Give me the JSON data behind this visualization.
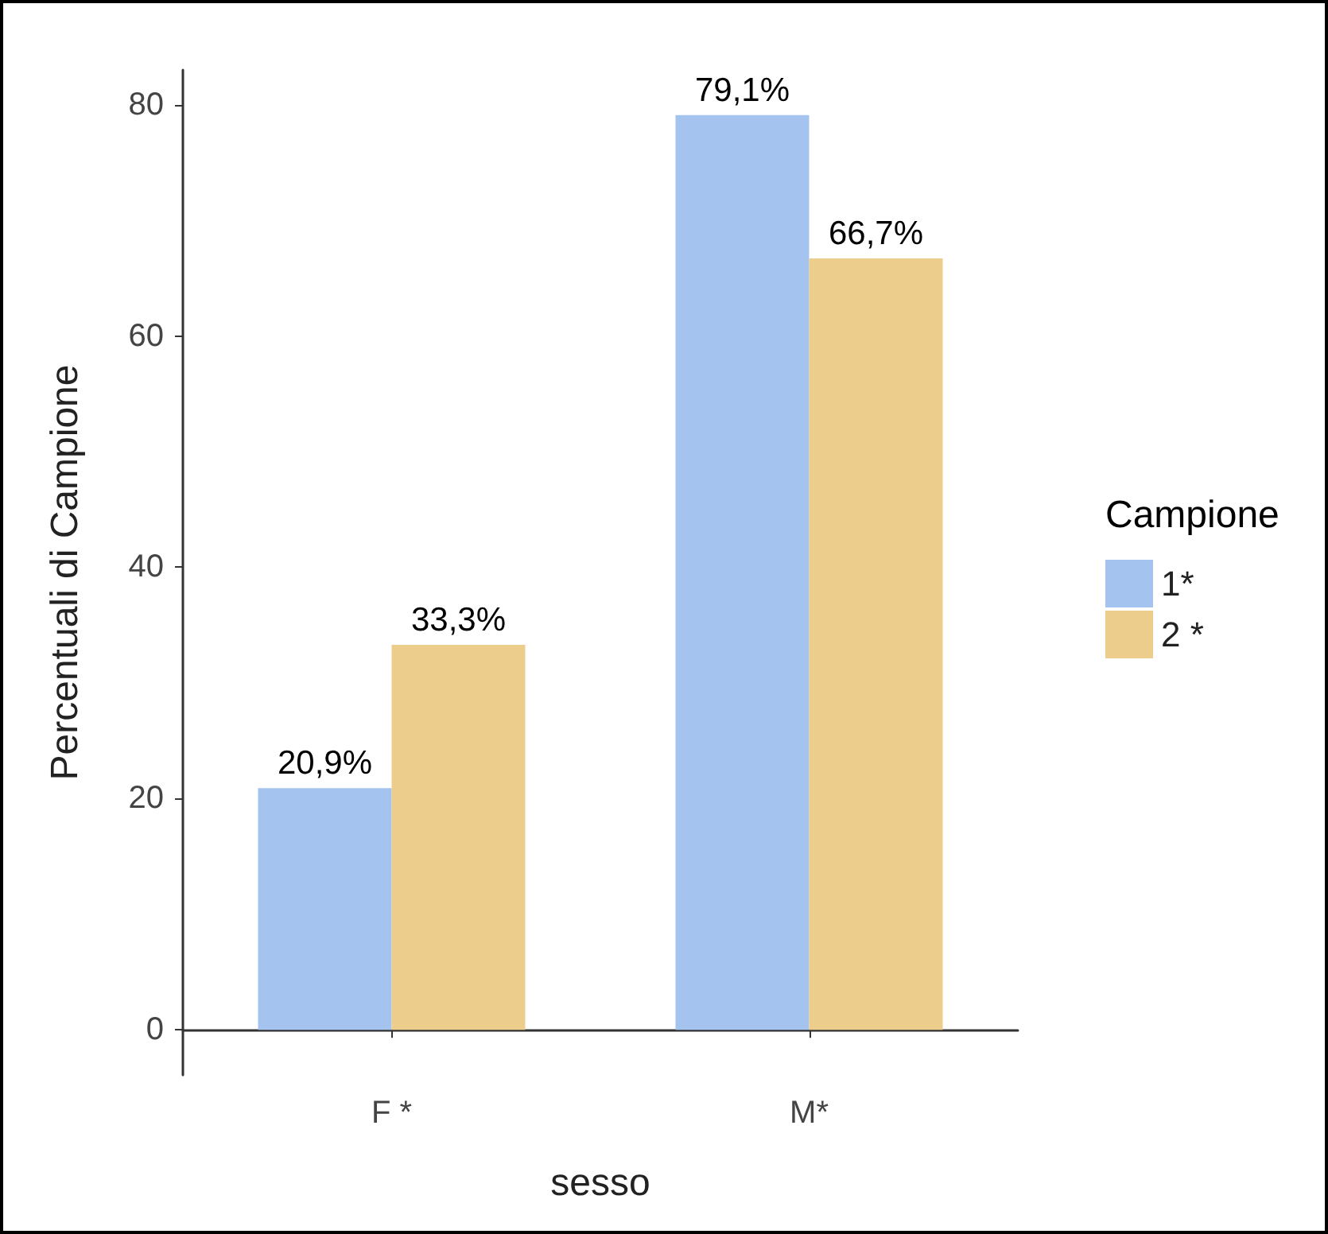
{
  "chart_data": {
    "type": "bar",
    "xlabel": "sesso",
    "ylabel": "Percentuali di Campione",
    "legend_title": "Campione",
    "categories": [
      "F *",
      "M*"
    ],
    "series": [
      {
        "name": "1*",
        "color": "#a4c3ef",
        "values": [
          20.9,
          79.1
        ],
        "value_labels": [
          "20,9%",
          "79,1%"
        ]
      },
      {
        "name": "2 *",
        "color": "#edcd8c",
        "values": [
          33.3,
          66.7
        ],
        "value_labels": [
          "33,3%",
          "66,7%"
        ]
      }
    ],
    "ylim": [
      -3.9,
      83
    ],
    "yticks": [
      0,
      20,
      40,
      60,
      80
    ],
    "grid": false,
    "legend": "right"
  }
}
